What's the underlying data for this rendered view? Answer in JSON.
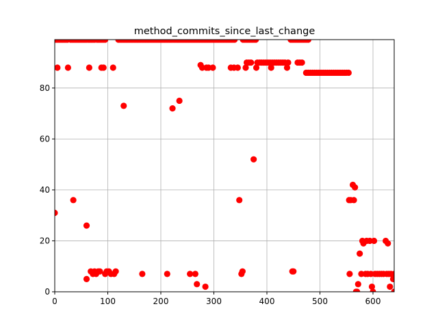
{
  "chart_data": {
    "type": "scatter",
    "title": "method_commits_since_last_change",
    "xlabel": "",
    "ylabel": "",
    "xlim": [
      0,
      640
    ],
    "ylim": [
      0,
      99
    ],
    "xticks": [
      0,
      100,
      200,
      300,
      400,
      500,
      600
    ],
    "yticks": [
      0,
      20,
      40,
      60,
      80
    ],
    "grid": true,
    "marker_color": "#ff0000",
    "series": [
      {
        "points": [
          [
            0,
            31
          ],
          [
            5,
            88
          ],
          [
            25,
            88
          ],
          [
            35,
            36
          ],
          [
            60,
            26
          ],
          [
            60,
            5
          ],
          [
            65,
            88
          ],
          [
            68,
            8
          ],
          [
            72,
            7
          ],
          [
            75,
            8
          ],
          [
            78,
            7
          ],
          [
            82,
            8
          ],
          [
            85,
            8
          ],
          [
            88,
            88
          ],
          [
            92,
            88
          ],
          [
            95,
            7
          ],
          [
            98,
            8
          ],
          [
            102,
            8
          ],
          [
            106,
            7
          ],
          [
            110,
            88
          ],
          [
            112,
            7
          ],
          [
            115,
            8
          ],
          [
            130,
            73
          ],
          [
            165,
            7
          ],
          [
            212,
            7
          ],
          [
            222,
            72
          ],
          [
            235,
            75
          ],
          [
            255,
            7
          ],
          [
            265,
            7
          ],
          [
            268,
            3
          ],
          [
            275,
            89
          ],
          [
            278,
            88
          ],
          [
            284,
            2
          ],
          [
            286,
            88
          ],
          [
            290,
            88
          ],
          [
            298,
            88
          ],
          [
            332,
            88
          ],
          [
            338,
            88
          ],
          [
            345,
            88
          ],
          [
            348,
            36
          ],
          [
            352,
            7
          ],
          [
            354,
            8
          ],
          [
            360,
            88
          ],
          [
            362,
            90
          ],
          [
            366,
            90
          ],
          [
            370,
            90
          ],
          [
            375,
            52
          ],
          [
            380,
            88
          ],
          [
            382,
            90
          ],
          [
            386,
            90
          ],
          [
            390,
            90
          ],
          [
            394,
            90
          ],
          [
            398,
            90
          ],
          [
            402,
            90
          ],
          [
            406,
            90
          ],
          [
            408,
            88
          ],
          [
            410,
            90
          ],
          [
            414,
            90
          ],
          [
            418,
            90
          ],
          [
            422,
            90
          ],
          [
            426,
            90
          ],
          [
            430,
            90
          ],
          [
            434,
            90
          ],
          [
            438,
            88
          ],
          [
            440,
            90
          ],
          [
            448,
            8
          ],
          [
            450,
            8
          ],
          [
            458,
            90
          ],
          [
            462,
            90
          ],
          [
            466,
            90
          ],
          [
            474,
            86
          ],
          [
            478,
            86
          ],
          [
            482,
            86
          ],
          [
            486,
            86
          ],
          [
            490,
            86
          ],
          [
            494,
            86
          ],
          [
            498,
            86
          ],
          [
            502,
            86
          ],
          [
            506,
            86
          ],
          [
            510,
            86
          ],
          [
            514,
            86
          ],
          [
            518,
            86
          ],
          [
            522,
            86
          ],
          [
            526,
            86
          ],
          [
            530,
            86
          ],
          [
            534,
            86
          ],
          [
            538,
            86
          ],
          [
            542,
            86
          ],
          [
            546,
            86
          ],
          [
            550,
            86
          ],
          [
            554,
            86
          ],
          [
            555,
            36
          ],
          [
            556,
            7
          ],
          [
            558,
            36
          ],
          [
            562,
            42
          ],
          [
            564,
            36
          ],
          [
            566,
            41
          ],
          [
            568,
            0
          ],
          [
            570,
            0
          ],
          [
            572,
            3
          ],
          [
            575,
            15
          ],
          [
            578,
            7
          ],
          [
            580,
            20
          ],
          [
            582,
            19
          ],
          [
            586,
            7
          ],
          [
            588,
            20
          ],
          [
            590,
            7
          ],
          [
            594,
            20
          ],
          [
            596,
            7
          ],
          [
            598,
            2
          ],
          [
            600,
            0
          ],
          [
            602,
            20
          ],
          [
            604,
            7
          ],
          [
            608,
            7
          ],
          [
            612,
            7
          ],
          [
            616,
            7
          ],
          [
            620,
            7
          ],
          [
            624,
            20
          ],
          [
            626,
            7
          ],
          [
            628,
            19
          ],
          [
            630,
            7
          ],
          [
            632,
            2
          ],
          [
            634,
            7
          ],
          [
            638,
            5
          ],
          [
            640,
            0
          ],
          [
            640,
            7
          ]
        ],
        "top_edge_bands": [
          [
            0,
            25
          ],
          [
            30,
            75
          ],
          [
            80,
            95
          ],
          [
            120,
            340
          ],
          [
            355,
            380
          ],
          [
            445,
            480
          ]
        ],
        "top_edge_value": 99
      }
    ]
  }
}
